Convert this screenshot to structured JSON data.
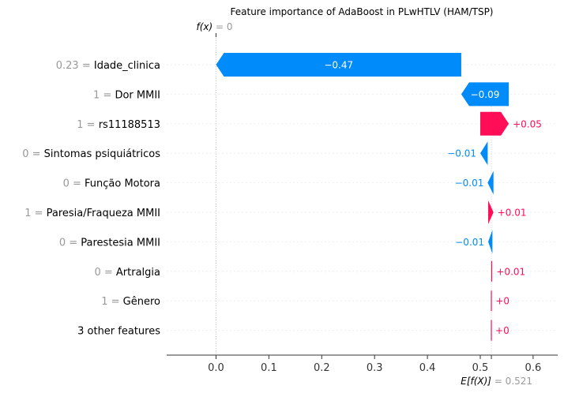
{
  "chart_data": {
    "type": "waterfall",
    "title": "Feature importance of AdaBoost in PLwHTLV (HAM/TSP)",
    "fx_label": "f(x)",
    "fx_value": "0",
    "base_label": "E[f(X)]",
    "base_value": 0.521,
    "base_value_text": "0.521",
    "xlim": [
      -0.09,
      0.645
    ],
    "x_ticks": [
      0.0,
      0.1,
      0.2,
      0.3,
      0.4,
      0.5,
      0.6
    ],
    "x_tick_labels": [
      "0.0",
      "0.1",
      "0.2",
      "0.3",
      "0.4",
      "0.5",
      "0.6"
    ],
    "colors": {
      "positive": "#ff0d57",
      "negative": "#008bfb",
      "grid": "#cccccc"
    },
    "features": [
      {
        "value": "0.23",
        "name": "Idade_clinica",
        "start": 0.464,
        "end": 0.0,
        "label": "−0.47"
      },
      {
        "value": "1",
        "name": "Dor MMII",
        "start": 0.554,
        "end": 0.464,
        "label": "−0.09"
      },
      {
        "value": "1",
        "name": "rs11188513",
        "start": 0.5,
        "end": 0.554,
        "label": "+0.05"
      },
      {
        "value": "0",
        "name": "Sintomas psiquiátricos",
        "start": 0.514,
        "end": 0.5,
        "label": "−0.01"
      },
      {
        "value": "0",
        "name": "Função Motora",
        "start": 0.525,
        "end": 0.514,
        "label": "−0.01"
      },
      {
        "value": "1",
        "name": "Paresia/Fraqueza MMII",
        "start": 0.515,
        "end": 0.525,
        "label": "+0.01"
      },
      {
        "value": "0",
        "name": "Parestesia MMII",
        "start": 0.523,
        "end": 0.515,
        "label": "−0.01"
      },
      {
        "value": "0",
        "name": "Artralgia",
        "start": 0.5215,
        "end": 0.523,
        "label": "+0.01"
      },
      {
        "value": "1",
        "name": "Gênero",
        "start": 0.521,
        "end": 0.5215,
        "label": "+0"
      },
      {
        "value": "",
        "name": "3 other features",
        "start": 0.521,
        "end": 0.521,
        "label": "+0"
      }
    ]
  }
}
